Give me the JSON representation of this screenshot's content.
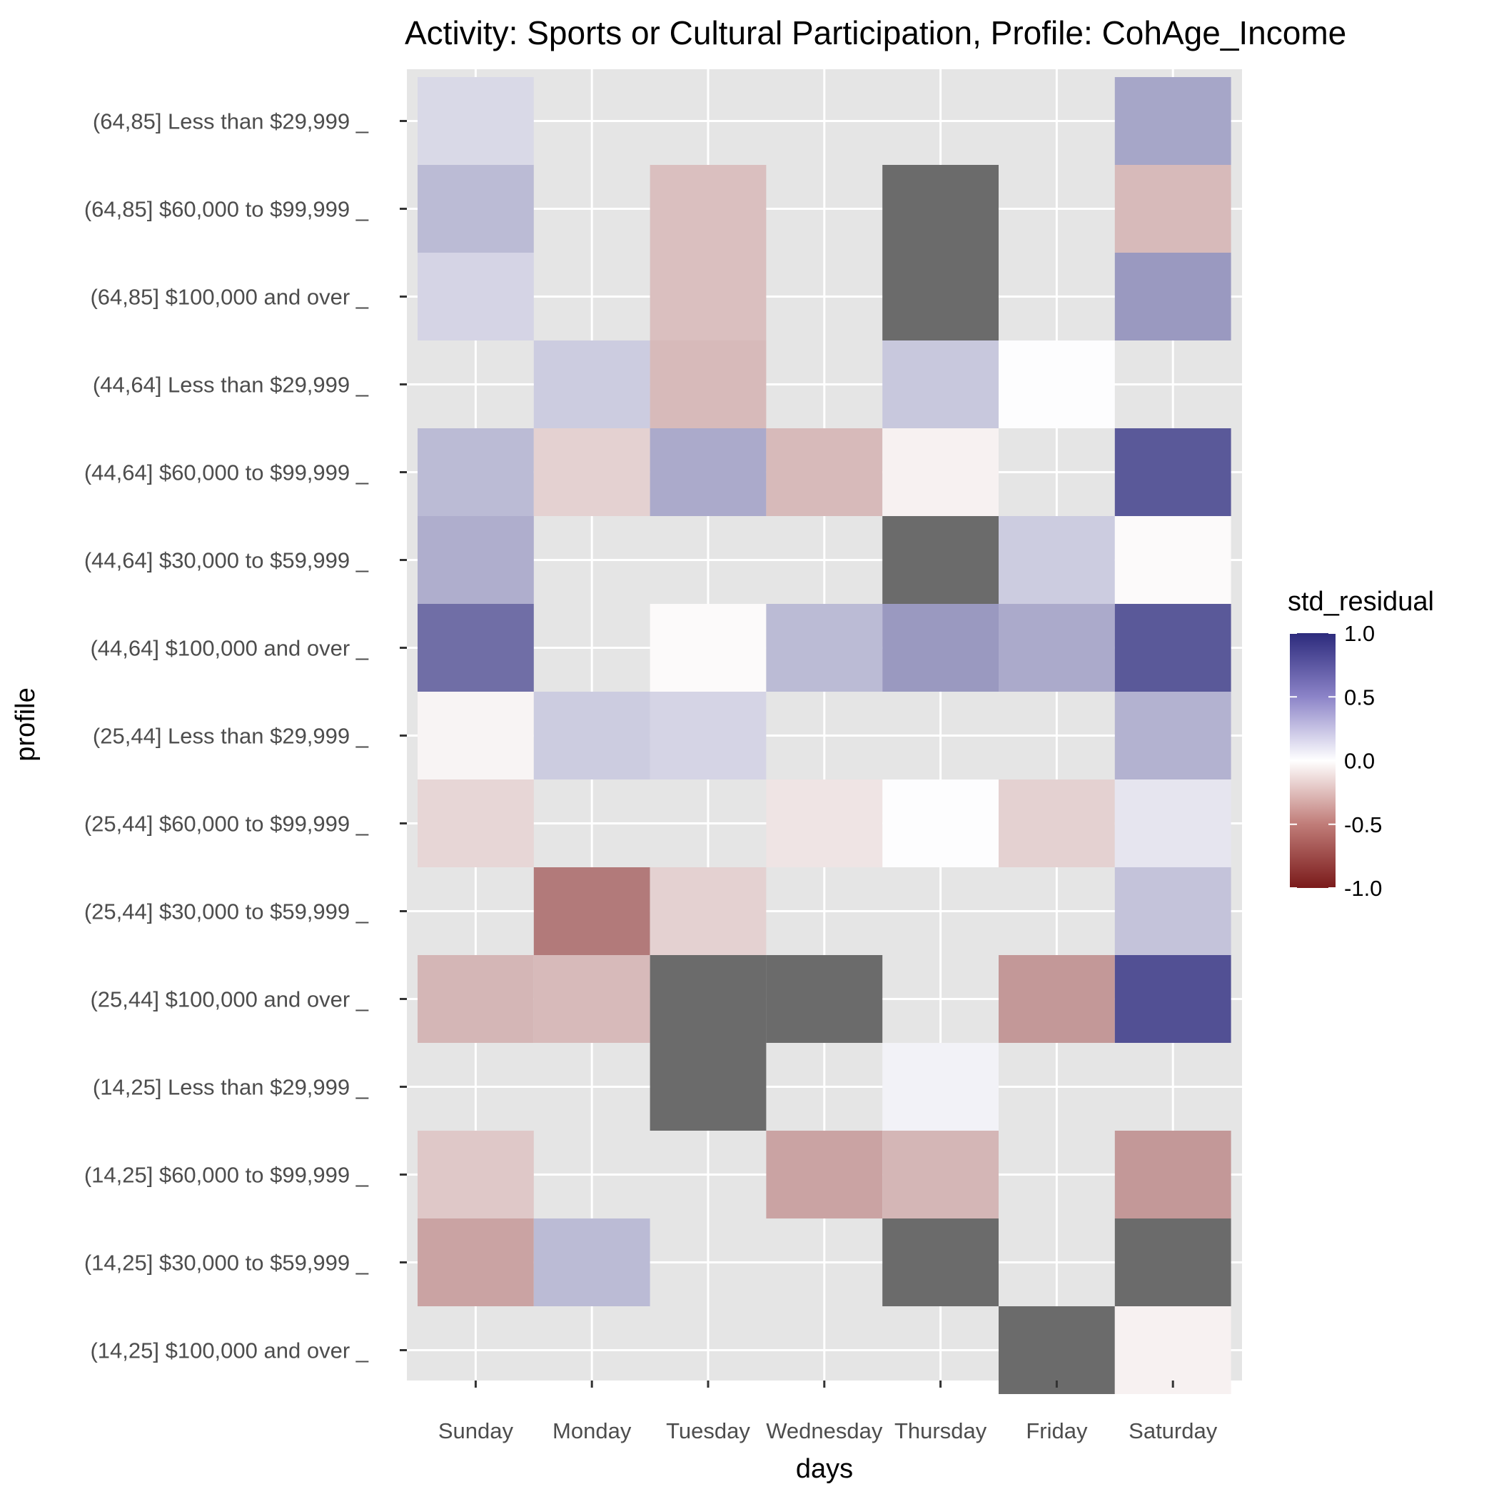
{
  "chart_data": {
    "type": "heatmap",
    "title": "Activity: Sports or Cultural Participation, Profile: CohAge_Income",
    "xlabel": "days",
    "ylabel": "profile",
    "x_categories": [
      "Sunday",
      "Monday",
      "Tuesday",
      "Wednesday",
      "Thursday",
      "Friday",
      "Saturday"
    ],
    "y_categories": [
      "(64,85] Less than $29,999 _",
      "(64,85] $60,000 to $99,999 _",
      "(64,85] $100,000 and over _",
      "(44,64] Less than $29,999 _",
      "(44,64] $60,000 to $99,999 _",
      "(44,64] $30,000 to $59,999 _",
      "(44,64] $100,000 and over _",
      "(25,44] Less than $29,999 _",
      "(25,44] $60,000 to $99,999 _",
      "(25,44] $30,000 to $59,999 _",
      "(25,44] $100,000 and over _",
      "(14,25] Less than $29,999 _",
      "(14,25] $60,000 to $99,999 _",
      "(14,25] $30,000 to $59,999 _",
      "(14,25] $100,000 and over _"
    ],
    "values": [
      [
        0.18,
        null,
        null,
        null,
        null,
        null,
        0.42
      ],
      [
        0.32,
        null,
        -0.28,
        null,
        "NA",
        null,
        -0.3
      ],
      [
        0.2,
        null,
        -0.28,
        null,
        "NA",
        null,
        0.48
      ],
      [
        null,
        0.24,
        -0.3,
        null,
        0.26,
        0.01,
        null
      ],
      [
        0.32,
        -0.2,
        0.4,
        -0.3,
        -0.06,
        null,
        0.78
      ],
      [
        0.38,
        null,
        null,
        null,
        "NA",
        0.24,
        -0.02
      ],
      [
        0.68,
        null,
        -0.02,
        0.32,
        0.48,
        0.4,
        0.78
      ],
      [
        -0.05,
        0.24,
        0.2,
        null,
        null,
        null,
        0.36
      ],
      [
        -0.18,
        null,
        null,
        -0.12,
        0.01,
        -0.2,
        0.12
      ],
      [
        null,
        -0.58,
        -0.2,
        null,
        null,
        null,
        0.28
      ],
      [
        -0.32,
        -0.3,
        "NA",
        "NA",
        null,
        -0.45,
        0.82
      ],
      [
        null,
        null,
        "NA",
        null,
        0.06,
        null,
        null
      ],
      [
        -0.24,
        null,
        null,
        -0.4,
        -0.32,
        null,
        -0.45
      ],
      [
        -0.4,
        0.32,
        null,
        null,
        "NA",
        null,
        "NA"
      ],
      [
        null,
        null,
        null,
        null,
        null,
        "NA",
        -0.06
      ]
    ],
    "na_color": "#6b6b6b",
    "legend": {
      "title": "std_residual",
      "position": "right",
      "ticks": [
        1.0,
        0.5,
        0.0,
        -0.5,
        -1.0
      ],
      "tick_labels": [
        "1.0",
        "0.5",
        "0.0",
        "-0.5",
        "-1.0"
      ],
      "high_color": "#2c2a7c",
      "mid_color": "#ffffff",
      "low_color": "#7a1a1a"
    },
    "panel_background": "#e5e5e5",
    "grid": true
  }
}
